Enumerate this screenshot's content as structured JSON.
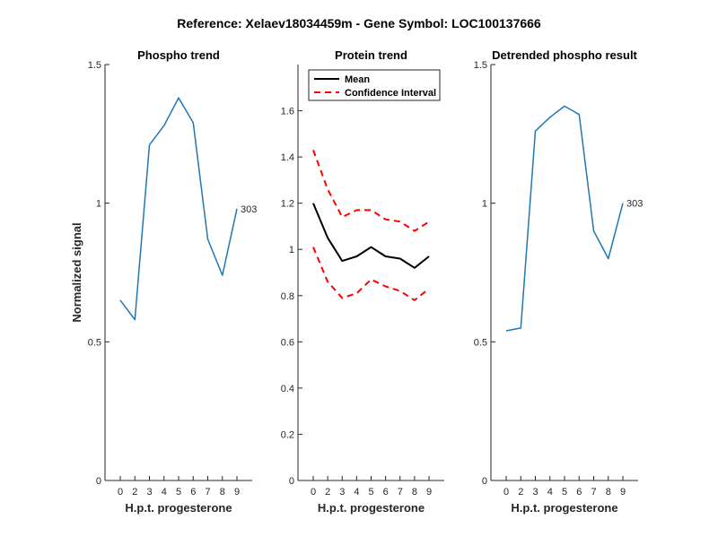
{
  "figure": {
    "title": "Reference:  Xelaev18034459m - Gene Symbol:  LOC100137666"
  },
  "colors": {
    "phospho_line": "#1f77b4",
    "mean_line": "#000000",
    "ci_line": "#ff0000",
    "axis": "#262626"
  },
  "chart_data": [
    {
      "type": "line",
      "title": "Phospho trend",
      "xlabel": "H.p.t. progesterone",
      "ylabel": "Normalized signal",
      "categories": [
        "0",
        "2",
        "3",
        "4",
        "5",
        "6",
        "7",
        "8",
        "9"
      ],
      "ylim": [
        0,
        1.5
      ],
      "yticks": [
        "0",
        "0.5",
        "1",
        "1.5"
      ],
      "series": [
        {
          "values": [
            0.65,
            0.58,
            1.21,
            1.28,
            1.38,
            1.29,
            0.87,
            0.74,
            0.98
          ]
        }
      ],
      "annotation": "303"
    },
    {
      "type": "line",
      "title": "Protein trend",
      "xlabel": "H.p.t. progesterone",
      "ylabel": "",
      "categories": [
        "0",
        "2",
        "3",
        "4",
        "5",
        "6",
        "7",
        "8",
        "9"
      ],
      "ylim": [
        0,
        1.8
      ],
      "yticks": [
        "0",
        "0.2",
        "0.4",
        "0.6",
        "0.8",
        "1",
        "1.2",
        "1.4",
        "1.6"
      ],
      "legend": {
        "position": "top-left",
        "entries": [
          "Mean",
          "Confidence Interval"
        ]
      },
      "series": [
        {
          "name": "Mean",
          "values": [
            1.2,
            1.05,
            0.95,
            0.97,
            1.01,
            0.97,
            0.96,
            0.92,
            0.97
          ]
        },
        {
          "name": "Confidence Interval",
          "values": [
            1.43,
            1.26,
            1.14,
            1.17,
            1.17,
            1.13,
            1.12,
            1.08,
            1.12
          ]
        },
        {
          "name": "Confidence Interval",
          "values": [
            1.01,
            0.86,
            0.79,
            0.81,
            0.87,
            0.84,
            0.82,
            0.78,
            0.83
          ]
        }
      ]
    },
    {
      "type": "line",
      "title": "Detrended phospho result",
      "xlabel": "H.p.t. progesterone",
      "ylabel": "",
      "categories": [
        "0",
        "2",
        "3",
        "4",
        "5",
        "6",
        "7",
        "8",
        "9"
      ],
      "ylim": [
        0,
        1.5
      ],
      "yticks": [
        "0",
        "0.5",
        "1",
        "1.5"
      ],
      "series": [
        {
          "values": [
            0.54,
            0.55,
            1.26,
            1.31,
            1.35,
            1.32,
            0.9,
            0.8,
            1.0
          ]
        }
      ],
      "annotation": "303"
    }
  ]
}
